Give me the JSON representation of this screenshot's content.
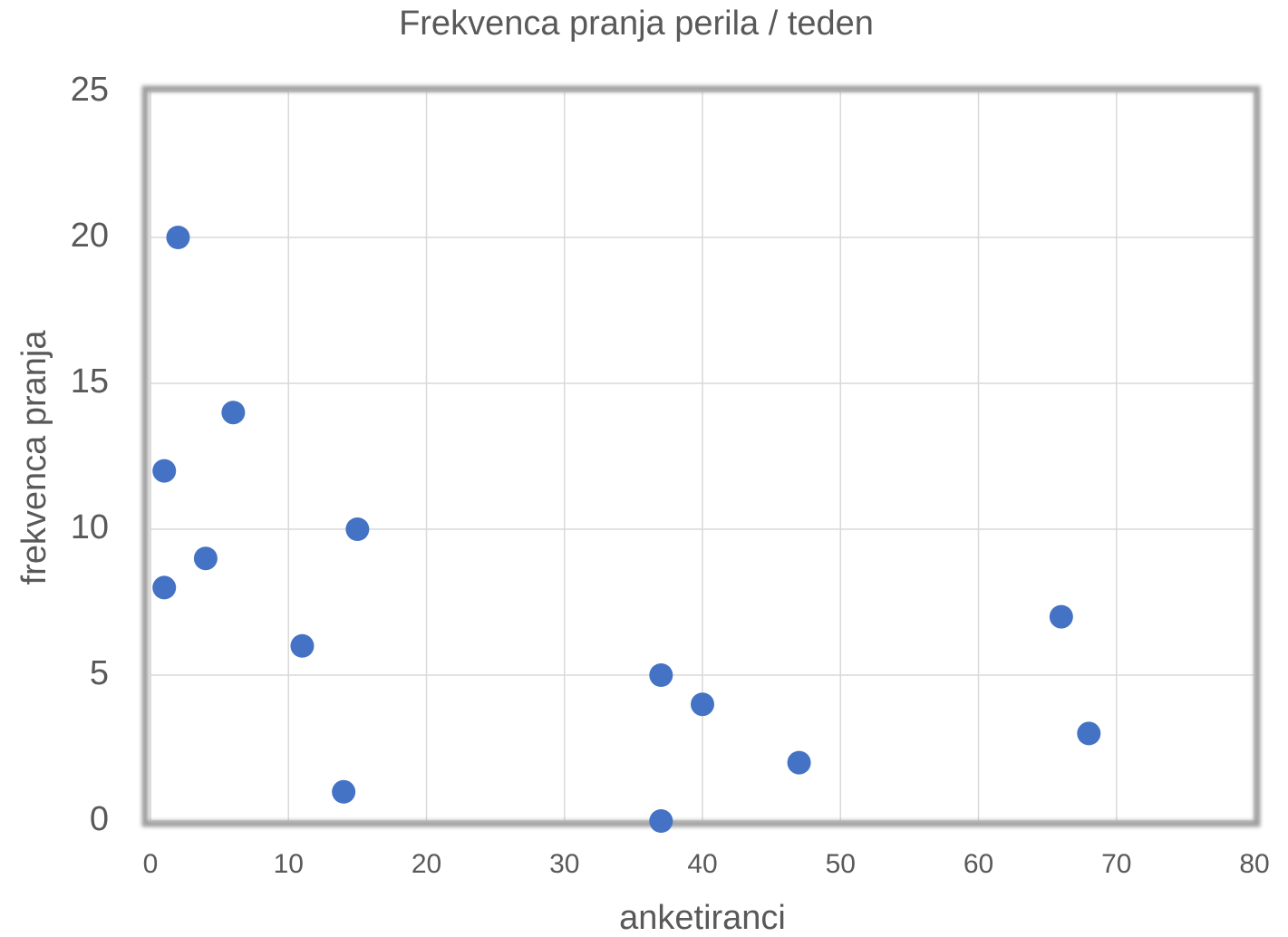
{
  "chart_data": {
    "type": "scatter",
    "title": "Frekvenca pranja perila / teden",
    "x_label": "anketiranci",
    "y_label": "frekvenca pranja",
    "x": [
      2,
      6,
      1,
      15,
      4,
      1,
      11,
      66,
      37,
      40,
      68,
      47,
      14,
      37
    ],
    "values": [
      20,
      14,
      12,
      10,
      9,
      8,
      6,
      7,
      5,
      4,
      3,
      2,
      1,
      0
    ],
    "color": "#4472c4",
    "xlim": [
      0,
      80
    ],
    "xticks": [
      0,
      10,
      20,
      30,
      40,
      50,
      60,
      70,
      80
    ],
    "ylim": [
      0,
      25
    ],
    "yticks": [
      0,
      5,
      10,
      15,
      20,
      25
    ],
    "grid": true
  }
}
